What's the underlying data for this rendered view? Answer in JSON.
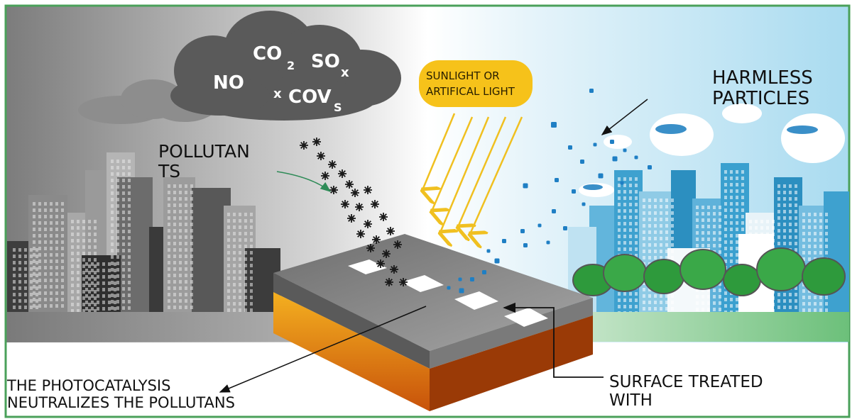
{
  "labels": {
    "pollutants": [
      "POLLUTAN",
      "TS"
    ],
    "harmless": [
      "HARMLESS",
      "PARTICLES"
    ],
    "light": [
      "SUNLIGHT OR",
      "ARTIFICAL LIGHT"
    ],
    "photocatalysis": [
      "THE PHOTOCATALYSIS",
      "NEUTRALIZES THE POLLUTANS"
    ],
    "surface": [
      "SURFACE TREATED",
      "WITH"
    ]
  },
  "chemicals": {
    "no": "NO",
    "co": "CO",
    "co_sub": "2",
    "so": "SO",
    "so_sub": "x",
    "x": "x",
    "cov": "COV",
    "cov_sub": "S"
  },
  "colors": {
    "frame": "#4aa05a",
    "sky_left": "#8a8a8a",
    "sky_right": "#bfe4f2",
    "smog": "#5a5a5a",
    "light_badge": "#f6c21a",
    "light_rays": "#f0c020",
    "road_top": "#8e8e8e",
    "road_side": "#e07a10",
    "particle": "#1f7fc4",
    "pollutant": "#1a1a1a",
    "tree": "#2e9a3c"
  },
  "icons": {
    "smog": "smog-cloud-icon",
    "city_left": "grey-city-icon",
    "city_right": "blue-city-icon",
    "road": "road-slab-icon",
    "light": "light-rays-icon"
  }
}
